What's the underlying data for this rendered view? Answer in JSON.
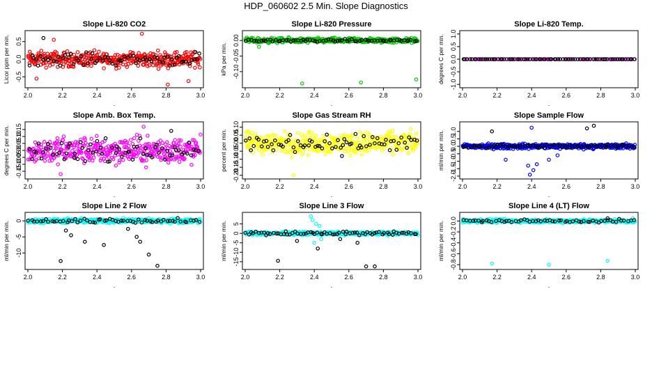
{
  "title": "HDP_060602  2.5 Min. Slope Diagnostics",
  "colors": {
    "black": "#000000",
    "red": "#ff0000",
    "green": "#00cc00",
    "magenta": "#ff00ff",
    "yellow": "#ffff00",
    "blue": "#0000ff",
    "cyan": "#00ffff"
  },
  "chart_data": [
    {
      "type": "scatter",
      "title": "Slope Li-820 CO2",
      "ylabel": "Licor ppm per min.",
      "xlim": [
        2.0,
        3.0
      ],
      "ylim": [
        -0.75,
        0.75
      ],
      "xticks": [
        "2.0",
        "2.2",
        "2.4",
        "2.6",
        "2.8",
        "3.0"
      ],
      "yticks": [
        -0.5,
        0.0,
        0.5
      ],
      "ytick_labels": [
        "-0.5",
        "0.0",
        "0.5"
      ],
      "series": [
        {
          "name": "main",
          "color": "#ff0000",
          "center": 0.0,
          "spread": 0.32,
          "n": 380,
          "outliers": [
            [
              2.66,
              0.72
            ],
            [
              2.81,
              -0.72
            ],
            [
              2.05,
              -0.55
            ],
            [
              2.93,
              -0.62
            ],
            [
              2.15,
              0.55
            ]
          ]
        },
        {
          "name": "black",
          "color": "#000000",
          "center": 0.0,
          "spread": 0.25,
          "n": 70,
          "outliers": [
            [
              2.09,
              0.6
            ],
            [
              2.97,
              0.2
            ]
          ]
        }
      ]
    },
    {
      "type": "scatter",
      "title": "Slope Li-820 Pressure",
      "ylabel": "kPa per min.",
      "xlim": [
        2.0,
        3.0
      ],
      "ylim": [
        -0.145,
        0.025
      ],
      "xticks": [
        "2.0",
        "2.2",
        "2.4",
        "2.6",
        "2.8",
        "3.0"
      ],
      "yticks": [
        -0.1,
        -0.05,
        0.0
      ],
      "ytick_labels": [
        "-0.10",
        "-0.05",
        "0.00"
      ],
      "series": [
        {
          "name": "main",
          "color": "#00cc00",
          "center": 0.0,
          "spread": 0.012,
          "n": 380,
          "outliers": [
            [
              2.33,
              -0.138
            ],
            [
              2.67,
              -0.135
            ],
            [
              2.99,
              -0.125
            ],
            [
              2.08,
              -0.02
            ]
          ]
        },
        {
          "name": "black",
          "color": "#000000",
          "center": 0.0,
          "spread": 0.006,
          "n": 70,
          "outliers": []
        }
      ]
    },
    {
      "type": "scatter",
      "title": "Slope Li-820 Temp.",
      "ylabel": "degrees C per min.",
      "xlim": [
        2.0,
        3.0
      ],
      "ylim": [
        -1.05,
        1.05
      ],
      "xticks": [
        "2.0",
        "2.2",
        "2.4",
        "2.6",
        "2.8",
        "3.0"
      ],
      "yticks": [
        -1.0,
        -0.5,
        0.0,
        0.5,
        1.0
      ],
      "ytick_labels": [
        "-1.0",
        "-0.5",
        "0.0",
        "0.5",
        "1.0"
      ],
      "series": [
        {
          "name": "main",
          "color": "#ff00ff",
          "center": 0.0,
          "spread": 0.0,
          "n": 80,
          "outliers": []
        },
        {
          "name": "black",
          "color": "#000000",
          "center": 0.0,
          "spread": 0.0,
          "n": 80,
          "outliers": []
        }
      ]
    },
    {
      "type": "scatter",
      "title": "Slope Amb. Box Temp.",
      "ylabel": "degrees C per min.",
      "xlim": [
        2.0,
        3.0
      ],
      "ylim": [
        -0.19,
        0.19
      ],
      "xticks": [
        "2.0",
        "2.2",
        "2.4",
        "2.6",
        "2.8",
        "3.0"
      ],
      "yticks": [
        -0.15,
        -0.1,
        -0.05,
        0.0,
        0.05,
        0.1,
        0.15
      ],
      "ytick_labels": [
        "-0.15",
        "-0.10",
        "-0.05",
        "0.00",
        "0.05",
        "0.10",
        "0.15"
      ],
      "series": [
        {
          "name": "main",
          "color": "#ff00ff",
          "center": 0.0,
          "spread": 0.14,
          "n": 400,
          "outliers": [
            [
              2.19,
              -0.17
            ],
            [
              2.67,
              0.17
            ]
          ]
        },
        {
          "name": "black",
          "color": "#000000",
          "center": 0.0,
          "spread": 0.11,
          "n": 70,
          "outliers": [
            [
              2.83,
              0.14
            ]
          ]
        }
      ]
    },
    {
      "type": "scatter",
      "title": "Slope Gas Stream RH",
      "ylabel": "percent per min.",
      "xlim": [
        2.0,
        3.0
      ],
      "ylim": [
        -0.21,
        0.12
      ],
      "xticks": [
        "2.0",
        "2.2",
        "2.4",
        "2.6",
        "2.8",
        "3.0"
      ],
      "yticks": [
        -0.2,
        -0.15,
        -0.1,
        -0.05,
        0.0,
        0.05,
        0.1
      ],
      "ytick_labels": [
        "-0.20",
        "-0.15",
        "-0.10",
        "-0.05",
        "0.00",
        "0.05",
        "0.10"
      ],
      "series": [
        {
          "name": "main",
          "color": "#ffff00",
          "center": 0.0,
          "spread": 0.1,
          "n": 400,
          "outliers": [
            [
              2.28,
              -0.2
            ]
          ]
        },
        {
          "name": "black",
          "color": "#000000",
          "center": 0.0,
          "spread": 0.07,
          "n": 70,
          "outliers": [
            [
              2.56,
              -0.08
            ]
          ]
        }
      ]
    },
    {
      "type": "scatter",
      "title": "Slope Sample Flow",
      "ylabel": "ml/min per min.",
      "xlim": [
        2.0,
        3.0
      ],
      "ylim": [
        -2.05,
        1.5
      ],
      "xticks": [
        "2.0",
        "2.2",
        "2.4",
        "2.6",
        "2.8",
        "3.0"
      ],
      "yticks": [
        -2,
        -1.5,
        -1,
        -0.5,
        0,
        0.5,
        1
      ],
      "ytick_labels": [
        "-2.0",
        "-1.5",
        "-1.0",
        "-0.5",
        "0.0",
        "0.5",
        "1.0"
      ],
      "series": [
        {
          "name": "main",
          "color": "#0000ff",
          "center": 0.0,
          "spread": 0.25,
          "n": 400,
          "outliers": [
            [
              2.4,
              1.25
            ],
            [
              2.38,
              -1.3
            ],
            [
              2.41,
              -1.6
            ],
            [
              2.43,
              -1.2
            ],
            [
              2.39,
              -1.9
            ],
            [
              2.25,
              -0.9
            ],
            [
              2.5,
              -0.9
            ],
            [
              2.55,
              -0.6
            ]
          ]
        },
        {
          "name": "black",
          "color": "#000000",
          "center": 0.0,
          "spread": 0.2,
          "n": 70,
          "outliers": [
            [
              2.17,
              1.0
            ],
            [
              2.76,
              1.38
            ],
            [
              2.72,
              1.2
            ]
          ]
        }
      ]
    },
    {
      "type": "scatter",
      "title": "Slope Line 2 Flow",
      "ylabel": "ml/min per min.",
      "xlim": [
        2.0,
        3.0
      ],
      "ylim": [
        -14.5,
        2.0
      ],
      "xticks": [
        "2.0",
        "2.2",
        "2.4",
        "2.6",
        "2.8",
        "3.0"
      ],
      "yticks": [
        -10,
        -5,
        0
      ],
      "ytick_labels": [
        "-10",
        "-5",
        "0"
      ],
      "series": [
        {
          "name": "main",
          "color": "#00ffff",
          "center": 0.0,
          "spread": 1.0,
          "n": 400,
          "outliers": []
        },
        {
          "name": "black",
          "color": "#000000",
          "center": 0.0,
          "spread": 1.0,
          "n": 60,
          "outliers": [
            [
              2.19,
              -12.5
            ],
            [
              2.22,
              -3
            ],
            [
              2.25,
              -4.5
            ],
            [
              2.33,
              -6.5
            ],
            [
              2.44,
              -7.5
            ],
            [
              2.63,
              -5
            ],
            [
              2.65,
              -6.5
            ],
            [
              2.7,
              -10.5
            ],
            [
              2.75,
              -14
            ],
            [
              2.58,
              -2.5
            ]
          ]
        }
      ]
    },
    {
      "type": "scatter",
      "title": "Slope Line 3 Flow",
      "ylabel": "ml/min per min.",
      "xlim": [
        2.0,
        3.0
      ],
      "ylim": [
        -18,
        10
      ],
      "xticks": [
        "2.0",
        "2.2",
        "2.4",
        "2.6",
        "2.8",
        "3.0"
      ],
      "yticks": [
        -15,
        -10,
        -5,
        0,
        5
      ],
      "ytick_labels": [
        "-15",
        "-10",
        "-5",
        "0",
        "5"
      ],
      "series": [
        {
          "name": "main",
          "color": "#00ffff",
          "center": 0.0,
          "spread": 1.2,
          "n": 400,
          "outliers": [
            [
              2.38,
              9
            ],
            [
              2.41,
              5
            ],
            [
              2.4,
              -5
            ],
            [
              2.44,
              -3
            ],
            [
              2.43,
              4
            ],
            [
              2.39,
              7
            ]
          ]
        },
        {
          "name": "black",
          "color": "#000000",
          "center": 0.0,
          "spread": 1.5,
          "n": 70,
          "outliers": [
            [
              2.19,
              -14.5
            ],
            [
              2.42,
              -8
            ],
            [
              2.7,
              -17.5
            ],
            [
              2.75,
              -17.5
            ],
            [
              2.65,
              -5
            ],
            [
              2.3,
              -4
            ],
            [
              2.55,
              -3
            ]
          ]
        }
      ]
    },
    {
      "type": "scatter",
      "title": "Slope Line 4 (LT) Flow",
      "ylabel": "ml/min per min.",
      "xlim": [
        2.0,
        3.0
      ],
      "ylim": [
        -0.85,
        0.12
      ],
      "xticks": [
        "2.0",
        "2.2",
        "2.4",
        "2.6",
        "2.8",
        "3.0"
      ],
      "yticks": [
        -0.8,
        -0.6,
        -0.4,
        -0.2,
        0.0
      ],
      "ytick_labels": [
        "-0.8",
        "-0.6",
        "-0.4",
        "-0.2",
        "0.0"
      ],
      "series": [
        {
          "name": "main",
          "color": "#00ffff",
          "center": 0.0,
          "spread": 0.05,
          "n": 400,
          "outliers": [
            [
              2.17,
              -0.78
            ],
            [
              2.5,
              -0.8
            ],
            [
              2.84,
              -0.73
            ]
          ]
        },
        {
          "name": "black",
          "color": "#000000",
          "center": 0.0,
          "spread": 0.04,
          "n": 60,
          "outliers": [
            [
              2.84,
              0.05
            ]
          ]
        }
      ]
    }
  ]
}
